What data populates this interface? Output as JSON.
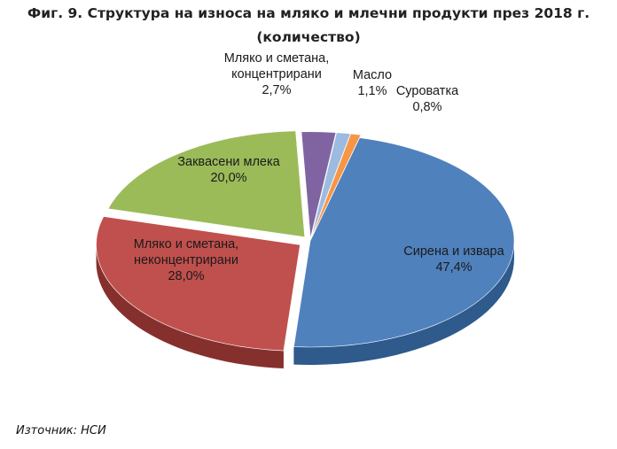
{
  "title": {
    "line1": "Фиг. 9. Структура на износа на мляко и млечни продукти през 2018 г.",
    "line2": "(количество)"
  },
  "source": "Източник: НСИ",
  "chart_data": {
    "type": "pie",
    "style": "3d-exploded",
    "slices": [
      {
        "label_lines": [
          "Сирена и извара",
          "47,4%"
        ],
        "value": 47.4,
        "color": "#4f81bd",
        "side_color": "#2e5a8c"
      },
      {
        "label_lines": [
          "Мляко и сметана,",
          "неконцентрирани",
          "28,0%"
        ],
        "value": 28.0,
        "color": "#c0504d",
        "side_color": "#86302d"
      },
      {
        "label_lines": [
          "Заквасени млека",
          "20,0%"
        ],
        "value": 20.0,
        "color": "#9bbb59",
        "side_color": "#6b8a35"
      },
      {
        "label_lines": [
          "Мляко и сметана,",
          "концентрирани",
          "2,7%"
        ],
        "value": 2.7,
        "color": "#8064a2",
        "side_color": "#574273"
      },
      {
        "label_lines": [
          "Масло",
          "1,1%"
        ],
        "value": 1.1,
        "color": "#9dbbe0",
        "side_color": "#6d8fb8"
      },
      {
        "label_lines": [
          "Суроватка",
          "0,8%"
        ],
        "value": 0.8,
        "color": "#f79646",
        "side_color": "#b86a26"
      }
    ]
  }
}
